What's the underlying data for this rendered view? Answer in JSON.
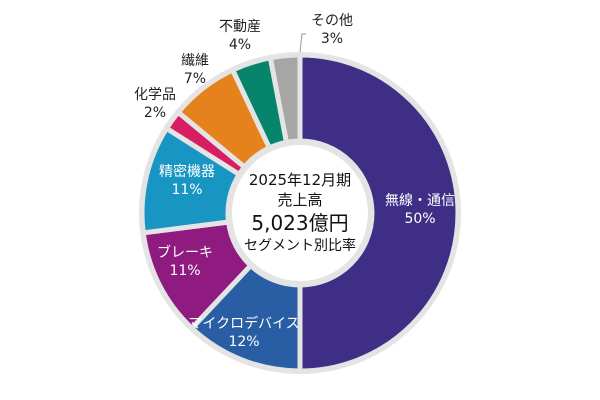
{
  "chart_data": {
    "type": "pie",
    "donut": true,
    "center_text": {
      "period": "2025年12月期",
      "metric": "売上高",
      "total": "5,023億円",
      "caption": "セグメント別比率"
    },
    "slices": [
      {
        "label": "無線・通信",
        "value": 50,
        "value_label": "50%",
        "color": "#3f2e86"
      },
      {
        "label": "マイクロデバイス",
        "value": 12,
        "value_label": "12%",
        "color": "#2a5ea4"
      },
      {
        "label": "ブレーキ",
        "value": 11,
        "value_label": "11%",
        "color": "#8f1a80"
      },
      {
        "label": "精密機器",
        "value": 11,
        "value_label": "11%",
        "color": "#1895c2"
      },
      {
        "label": "化学品",
        "value": 2,
        "value_label": "2%",
        "color": "#d81e62"
      },
      {
        "label": "繊維",
        "value": 7,
        "value_label": "7%",
        "color": "#e5821b"
      },
      {
        "label": "不動産",
        "value": 4,
        "value_label": "4%",
        "color": "#06856c"
      },
      {
        "label": "その他",
        "value": 3,
        "value_label": "3%",
        "color": "#a6a6a6"
      }
    ]
  }
}
